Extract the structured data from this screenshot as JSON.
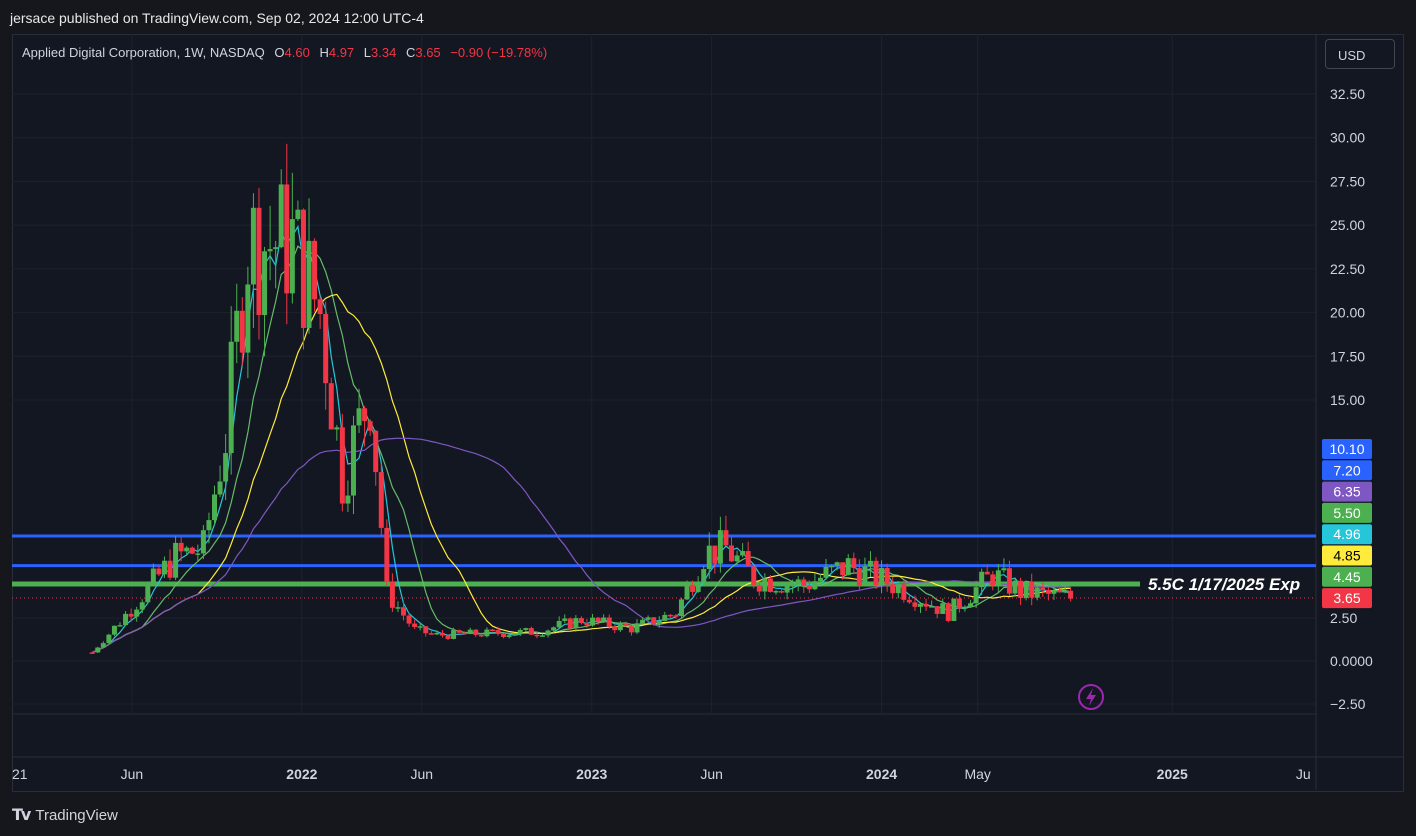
{
  "header": {
    "published": "jersace published on TradingView.com, Sep 02, 2024 12:00 UTC-4"
  },
  "symbol": {
    "name": "Applied Digital Corporation, 1W, NASDAQ",
    "open_label": "O",
    "open": "4.60",
    "high_label": "H",
    "high": "4.97",
    "low_label": "L",
    "low": "3.34",
    "close_label": "C",
    "close": "3.65",
    "change": "−0.90 (−19.78%)"
  },
  "currency_button": "USD",
  "footer": {
    "brand": "TradingView",
    "logo_icon": "tradingview-logo-icon"
  },
  "replay_icon": "lightning-icon",
  "colors": {
    "background": "#131722",
    "up": "#4caf50",
    "down": "#f23645",
    "horizontal_blue": "#2962ff",
    "horizontal_green": "#4caf50",
    "ma_fast": "#26c6da",
    "ma_mid": "#66bb6a",
    "ma_slow": "#ffeb3b",
    "ma_long": "#7e57c2"
  },
  "chart_data": {
    "type": "candlestick",
    "title": "Applied Digital Corporation, 1W, NASDAQ",
    "y_axis": {
      "ticks": [
        32.5,
        30.0,
        27.5,
        25.0,
        22.5,
        20.0,
        17.5,
        15.0,
        2.5,
        0.0,
        -2.5
      ],
      "tick_labels": [
        "32.50",
        "30.00",
        "27.50",
        "25.00",
        "22.50",
        "20.00",
        "17.50",
        "15.00",
        "2.50",
        "0.0000",
        "−2.50"
      ],
      "scale": "piecewise (broken between 2.50 and 15.00)"
    },
    "x_axis": {
      "tick_labels": [
        "21",
        "Jun",
        "2022",
        "Jun",
        "2023",
        "Jun",
        "2024",
        "May",
        "2025",
        "Ju"
      ],
      "bold_labels": [
        "2022",
        "2023",
        "2024",
        "2025"
      ]
    },
    "horizontal_lines": [
      {
        "value": 7.2,
        "color": "#2962ff"
      },
      {
        "value": 5.5,
        "color": "#2962ff"
      },
      {
        "value": 4.45,
        "color": "#4caf50",
        "label": "5.5C 1/17/2025 Exp"
      }
    ],
    "price_labels": [
      {
        "text": "10.10",
        "color": "#2962ff"
      },
      {
        "text": "7.20",
        "color": "#2962ff"
      },
      {
        "text": "6.35",
        "color": "#7e57c2"
      },
      {
        "text": "5.50",
        "color": "#4caf50"
      },
      {
        "text": "4.96",
        "color": "#26c6da"
      },
      {
        "text": "4.85",
        "color": "#ffeb3b"
      },
      {
        "text": "4.45",
        "color": "#4caf50"
      },
      {
        "text": "3.65",
        "color": "#f23645"
      }
    ],
    "last_close": 3.65,
    "close_series": [
      {
        "date": "2021-04-12",
        "close": 0.5
      },
      {
        "date": "2021-05-17",
        "close": 2.3
      },
      {
        "date": "2021-06-21",
        "close": 4.2
      },
      {
        "date": "2021-07-26",
        "close": 6.0
      },
      {
        "date": "2021-08-30",
        "close": 6.5
      },
      {
        "date": "2021-09-27",
        "close": 13.0
      },
      {
        "date": "2021-10-25",
        "close": 24.0
      },
      {
        "date": "2021-11-22",
        "close": 24.0
      },
      {
        "date": "2021-12-20",
        "close": 24.0
      },
      {
        "date": "2022-01-24",
        "close": 20.0
      },
      {
        "date": "2022-02-21",
        "close": 10.5
      },
      {
        "date": "2022-03-28",
        "close": 15.5
      },
      {
        "date": "2022-04-18",
        "close": 4.0
      },
      {
        "date": "2022-05-23",
        "close": 1.8
      },
      {
        "date": "2022-06-20",
        "close": 1.5
      },
      {
        "date": "2022-08-22",
        "close": 1.6
      },
      {
        "date": "2022-10-24",
        "close": 1.7
      },
      {
        "date": "2022-12-19",
        "close": 2.4
      },
      {
        "date": "2023-02-20",
        "close": 1.9
      },
      {
        "date": "2023-04-17",
        "close": 2.8
      },
      {
        "date": "2023-05-22",
        "close": 6.2
      },
      {
        "date": "2023-06-19",
        "close": 6.5
      },
      {
        "date": "2023-07-24",
        "close": 4.8
      },
      {
        "date": "2023-09-25",
        "close": 4.4
      },
      {
        "date": "2023-11-20",
        "close": 5.5
      },
      {
        "date": "2024-01-22",
        "close": 4.3
      },
      {
        "date": "2024-03-25",
        "close": 2.8
      },
      {
        "date": "2024-05-20",
        "close": 5.0
      },
      {
        "date": "2024-06-24",
        "close": 4.0
      },
      {
        "date": "2024-08-26",
        "close": 3.65
      }
    ],
    "moving_averages": [
      {
        "color": "#26c6da",
        "last": 4.96
      },
      {
        "color": "#66bb6a",
        "last": 4.45
      },
      {
        "color": "#ffeb3b",
        "last": 4.85
      },
      {
        "color": "#7e57c2",
        "last": 6.35
      }
    ]
  }
}
